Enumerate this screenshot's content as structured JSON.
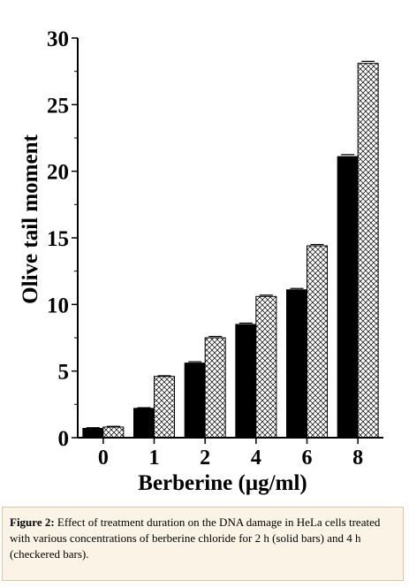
{
  "chart_data": {
    "type": "bar",
    "xlabel": "Berberine (µg/ml)",
    "ylabel": "Olive tail moment",
    "categories": [
      "0",
      "1",
      "2",
      "4",
      "6",
      "8"
    ],
    "ylim": [
      0,
      30
    ],
    "yticks": [
      "0",
      "5",
      "10",
      "15",
      "20",
      "25",
      "30"
    ],
    "series": [
      {
        "style": "solid",
        "color": "#000000",
        "values": [
          0.7,
          2.2,
          5.6,
          8.5,
          11.1,
          21.1
        ],
        "errors": [
          0.05,
          0.05,
          0.1,
          0.1,
          0.1,
          0.15
        ]
      },
      {
        "style": "checkered",
        "color": "#ffffff",
        "values": [
          0.8,
          4.6,
          7.5,
          10.6,
          14.4,
          28.1
        ],
        "errors": [
          0.05,
          0.05,
          0.1,
          0.1,
          0.1,
          0.15
        ]
      }
    ],
    "grid": false,
    "legend": "none"
  },
  "caption": {
    "label": "Figure 2:",
    "text": " Effect of treatment duration on the DNA damage in HeLa cells treated with various concentrations of berberine chloride for 2 h (solid bars) and 4 h (checkered bars)."
  }
}
